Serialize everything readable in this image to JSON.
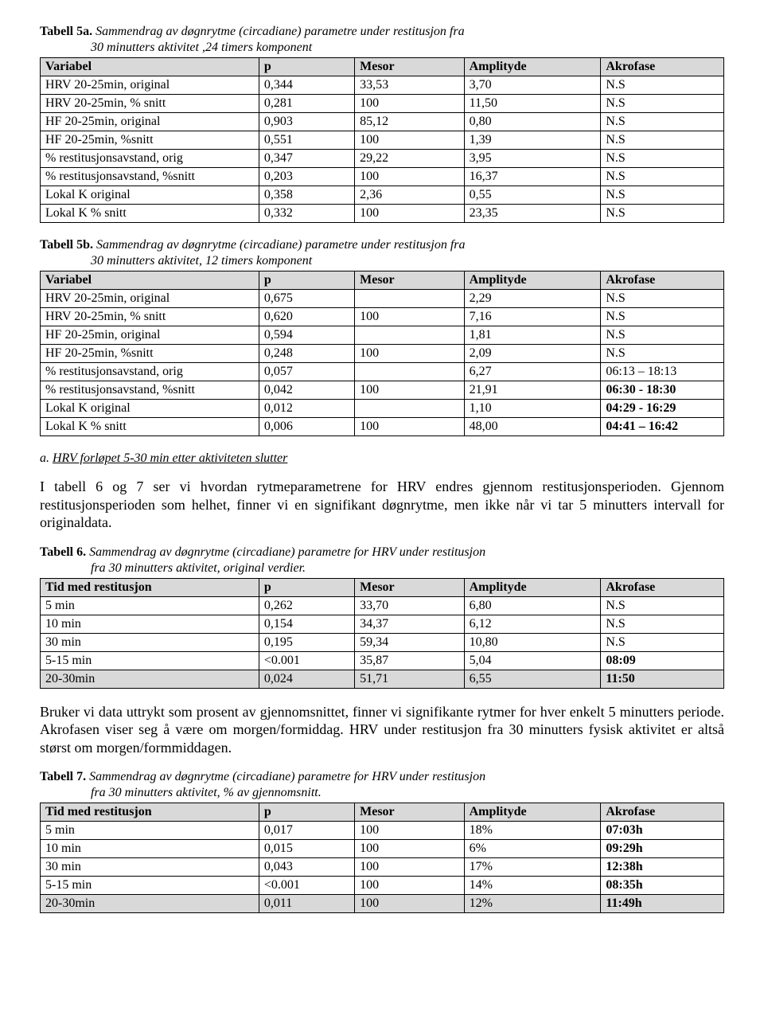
{
  "t5a": {
    "lead": "Tabell 5a.",
    "desc1": "Sammendrag av døgnrytme (circadiane) parametre under restitusjon fra",
    "desc2": "30 minutters aktivitet ,24 timers komponent",
    "headers": [
      "Variabel",
      "p",
      "Mesor",
      "Amplityde",
      "Akrofase"
    ],
    "rows": [
      [
        "HRV 20-25min, original",
        "0,344",
        "33,53",
        "3,70",
        "N.S"
      ],
      [
        "HRV 20-25min, % snitt",
        "0,281",
        "100",
        "11,50",
        "N.S"
      ],
      [
        "HF 20-25min, original",
        "0,903",
        "85,12",
        "0,80",
        "N.S"
      ],
      [
        "HF 20-25min, %snitt",
        "0,551",
        "100",
        "1,39",
        "N.S"
      ],
      [
        "% restitusjonsavstand, orig",
        "0,347",
        "29,22",
        "3,95",
        "N.S"
      ],
      [
        "% restitusjonsavstand, %snitt",
        "0,203",
        "100",
        "16,37",
        "N.S"
      ],
      [
        "Lokal K original",
        "0,358",
        "2,36",
        "0,55",
        "N.S"
      ],
      [
        "Lokal K % snitt",
        "0,332",
        "100",
        "23,35",
        "N.S"
      ]
    ]
  },
  "t5b": {
    "lead": "Tabell 5b.",
    "desc1": "Sammendrag av døgnrytme (circadiane) parametre under restitusjon fra",
    "desc2": "30 minutters aktivitet, 12 timers komponent",
    "headers": [
      "Variabel",
      "p",
      "Mesor",
      "Amplityde",
      "Akrofase"
    ],
    "rows": [
      [
        "HRV 20-25min, original",
        "0,675",
        "",
        "2,29",
        "N.S",
        false
      ],
      [
        "HRV 20-25min, % snitt",
        "0,620",
        "100",
        "7,16",
        "N.S",
        false
      ],
      [
        "HF 20-25min, original",
        "0,594",
        "",
        "1,81",
        "N.S",
        false
      ],
      [
        "HF 20-25min, %snitt",
        "0,248",
        "100",
        "2,09",
        "N.S",
        false
      ],
      [
        "% restitusjonsavstand, orig",
        "0,057",
        "",
        "6,27",
        "06:13 – 18:13",
        false
      ],
      [
        "% restitusjonsavstand, %snitt",
        "0,042",
        "100",
        "21,91",
        "06:30 - 18:30",
        true
      ],
      [
        "Lokal K original",
        "0,012",
        "",
        "1,10",
        "04:29 - 16:29",
        true
      ],
      [
        "Lokal K % snitt",
        "0,006",
        "100",
        "48,00",
        "04:41 – 16:42",
        true
      ]
    ]
  },
  "section_a": {
    "label": "a.",
    "title": "HRV  forløpet  5-30 min etter aktiviteten slutter"
  },
  "para1": "I tabell 6 og 7 ser vi hvordan rytmeparametrene for HRV endres gjennom restitusjonsperioden. Gjennom restitusjonsperioden som helhet, finner vi en signifikant døgnrytme, men ikke når vi tar 5 minutters intervall for originaldata.",
  "t6": {
    "lead": "Tabell 6.",
    "desc1": "Sammendrag av døgnrytme (circadiane) parametre for HRV under restitusjon",
    "desc2": "fra 30 minutters aktivitet, original verdier.",
    "headers": [
      "Tid med  restitusjon",
      "p",
      "Mesor",
      "Amplityde",
      "Akrofase"
    ],
    "rows": [
      [
        "  5 min",
        "0,262",
        "33,70",
        "6,80",
        "N.S",
        false,
        false
      ],
      [
        " 10 min",
        "0,154",
        "34,37",
        "6,12",
        "N.S",
        false,
        false
      ],
      [
        " 30 min",
        "0,195",
        "59,34",
        "10,80",
        "N.S",
        false,
        false
      ],
      [
        " 5-15 min",
        "<0.001",
        "35,87",
        "5,04",
        "08:09",
        false,
        true
      ],
      [
        "20-30min",
        "0,024",
        "51,71",
        "6,55",
        "11:50",
        true,
        true
      ]
    ]
  },
  "para2": "Bruker vi data uttrykt som prosent av gjennomsnittet, finner vi signifikante rytmer for hver enkelt 5 minutters periode. Akrofasen viser seg å være om morgen/formiddag. HRV under restitusjon fra 30 minutters fysisk aktivitet er altså størst om morgen/formmiddagen.",
  "t7": {
    "lead": "Tabell 7.",
    "desc1": "Sammendrag av døgnrytme (circadiane) parametre for HRV under restitusjon",
    "desc2": "fra 30 minutters aktivitet, % av gjennomsnitt.",
    "headers": [
      "Tid med  restitusjon",
      "p",
      "Mesor",
      "Amplityde",
      "Akrofase"
    ],
    "rows": [
      [
        "  5 min",
        "0,017",
        "100",
        "18%",
        "07:03h",
        false
      ],
      [
        " 10 min",
        "0,015",
        "100",
        "6%",
        "09:29h",
        false
      ],
      [
        " 30 min",
        "0,043",
        "100",
        "17%",
        "12:38h",
        false
      ],
      [
        " 5-15 min",
        "<0.001",
        "100",
        "14%",
        "08:35h",
        false
      ],
      [
        "20-30min",
        "0,011",
        "100",
        "12%",
        "11:49h",
        true
      ]
    ]
  }
}
